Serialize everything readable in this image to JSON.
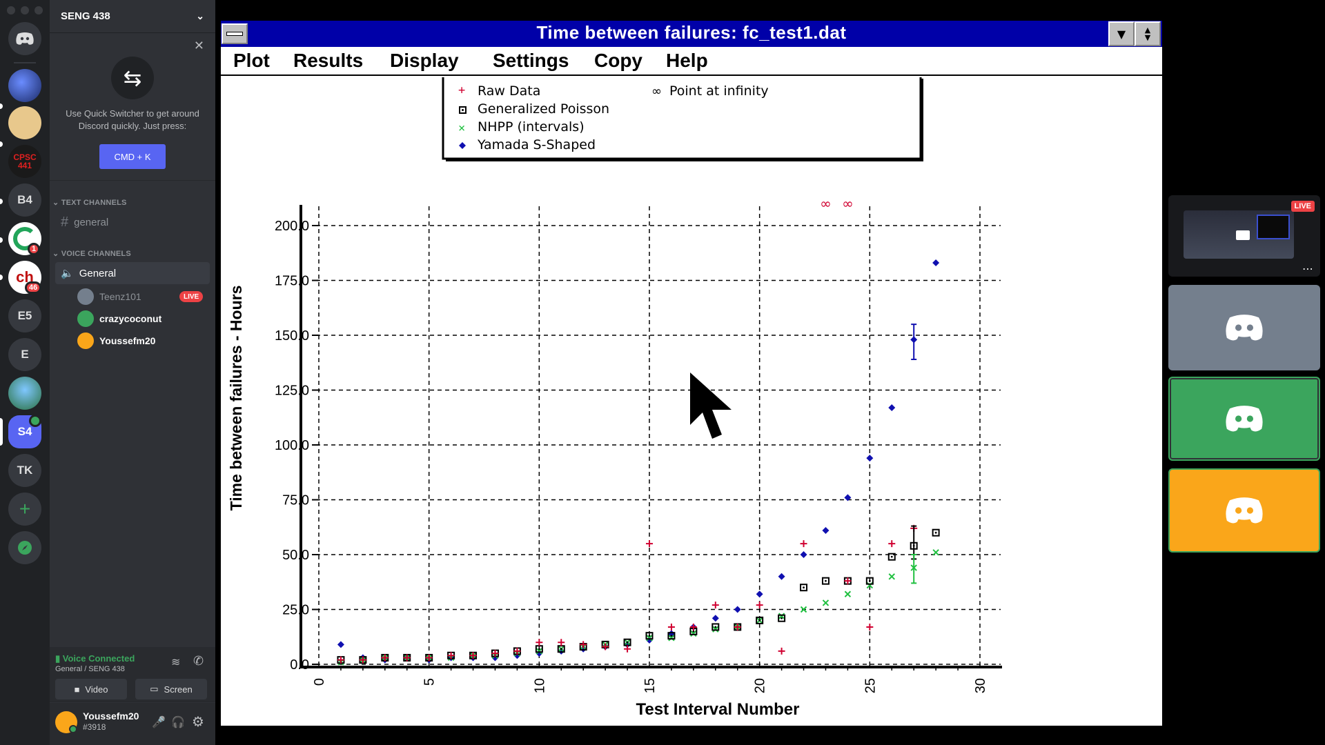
{
  "server": {
    "name": "SENG 438",
    "rail_items": [
      {
        "label": ""
      },
      {
        "label": ""
      },
      {
        "label": ""
      },
      {
        "label": "CPSC 441"
      },
      {
        "label": "B4"
      },
      {
        "label": "",
        "badge": "1"
      },
      {
        "label": "",
        "badge": "46"
      },
      {
        "label": "E5"
      },
      {
        "label": "E"
      },
      {
        "label": ""
      },
      {
        "label": "S4"
      },
      {
        "label": "TK"
      }
    ]
  },
  "quick_switcher": {
    "text": "Use Quick Switcher to get around Discord quickly. Just press:",
    "button": "CMD + K"
  },
  "categories": {
    "text": "TEXT CHANNELS",
    "voice": "VOICE CHANNELS"
  },
  "channels": {
    "text": [
      {
        "name": "general"
      }
    ],
    "voice": [
      {
        "name": "General"
      }
    ]
  },
  "voice_users": [
    {
      "name": "Teenz101",
      "live": "LIVE",
      "color": "#747f8d"
    },
    {
      "name": "crazycoconut",
      "live": "",
      "color": "#3ba55d"
    },
    {
      "name": "Youssefm20",
      "live": "",
      "color": "#faa61a"
    }
  ],
  "voice_connection": {
    "title": "Voice Connected",
    "subtitle": "General / SENG 438",
    "video_label": "Video",
    "screen_label": "Screen"
  },
  "current_user": {
    "name": "Youssefm20",
    "tag": "#3918"
  },
  "app": {
    "title": "Time between failures:   fc_test1.dat",
    "menu": [
      "Plot",
      "Results",
      "Display",
      "Settings",
      "Copy",
      "Help"
    ]
  },
  "stream_tile": {
    "live": "LIVE"
  },
  "colors": {
    "raw": "#d00030",
    "gp": "#000000",
    "nhpp": "#20c040",
    "yamada": "#1010b0",
    "inf": "#d00030"
  },
  "chart_data": {
    "type": "scatter",
    "xlabel": "Test Interval Number",
    "ylabel": "Time between failures - Hours",
    "xlim": [
      0,
      30
    ],
    "ylim": [
      0,
      200
    ],
    "xticks": [
      "0",
      "5",
      "10",
      "15",
      "20",
      "25",
      "30"
    ],
    "yticks": [
      "0.0",
      "25.0",
      "50.0",
      "75.0",
      "100.0",
      "125.0",
      "150.0",
      "175.0",
      "200.0"
    ],
    "grid": true,
    "legend_position": "top",
    "legend": [
      "Raw Data",
      "Generalized Poisson",
      "NHPP (intervals)",
      "Yamada S-Shaped",
      "Point at infinity"
    ],
    "series": [
      {
        "name": "Raw Data",
        "marker": "plus",
        "x": [
          1,
          2,
          3,
          4,
          5,
          6,
          7,
          8,
          9,
          10,
          11,
          12,
          13,
          14,
          15,
          16,
          17,
          18,
          19,
          20,
          21,
          22,
          24,
          25,
          26,
          27
        ],
        "y": [
          2,
          2,
          3,
          3,
          3,
          4,
          4,
          5,
          6,
          10,
          10,
          9,
          8,
          7,
          55,
          17,
          17,
          27,
          17,
          27,
          6,
          55,
          38,
          17,
          55,
          62
        ]
      },
      {
        "name": "Generalized Poisson",
        "marker": "square",
        "x": [
          1,
          2,
          3,
          4,
          5,
          6,
          7,
          8,
          9,
          10,
          11,
          12,
          13,
          14,
          15,
          16,
          17,
          18,
          19,
          20,
          21,
          22,
          23,
          24,
          25,
          26,
          27,
          28
        ],
        "y": [
          2,
          2,
          3,
          3,
          3,
          4,
          4,
          5,
          6,
          7,
          7,
          8,
          9,
          10,
          13,
          13,
          15,
          17,
          17,
          20,
          21,
          35,
          38,
          38,
          38,
          49,
          54,
          60
        ]
      },
      {
        "name": "NHPP (intervals)",
        "marker": "x",
        "x": [
          1,
          2,
          3,
          4,
          5,
          6,
          7,
          8,
          9,
          10,
          11,
          12,
          13,
          14,
          15,
          16,
          17,
          18,
          19,
          20,
          21,
          22,
          23,
          24,
          25,
          26,
          27,
          28
        ],
        "y": [
          1,
          2,
          3,
          3,
          3,
          3,
          4,
          4,
          5,
          6,
          7,
          8,
          9,
          10,
          12,
          12,
          14,
          16,
          17,
          20,
          22,
          25,
          28,
          32,
          36,
          40,
          44,
          51
        ]
      },
      {
        "name": "Yamada S-Shaped",
        "marker": "diamond",
        "x": [
          1,
          2,
          3,
          4,
          5,
          6,
          7,
          8,
          9,
          10,
          11,
          12,
          13,
          14,
          15,
          16,
          17,
          18,
          19,
          20,
          21,
          22,
          23,
          24,
          25,
          26,
          27,
          28
        ],
        "y": [
          9,
          3,
          2,
          3,
          2,
          3,
          3,
          3,
          4,
          5,
          6,
          7,
          8,
          9,
          11,
          14,
          17,
          21,
          25,
          32,
          40,
          50,
          61,
          76,
          94,
          117,
          148,
          183
        ]
      },
      {
        "name": "Point at infinity",
        "marker": "infinity",
        "x": [
          23,
          24
        ],
        "y": [
          "inf",
          "inf"
        ]
      }
    ],
    "error_bars": [
      {
        "series": "Yamada S-Shaped",
        "x": 27,
        "low": 139,
        "high": 155
      },
      {
        "series": "Generalized Poisson",
        "x": 27,
        "low": 48,
        "high": 63
      },
      {
        "series": "NHPP (intervals)",
        "x": 27,
        "low": 37,
        "high": 50
      }
    ]
  }
}
